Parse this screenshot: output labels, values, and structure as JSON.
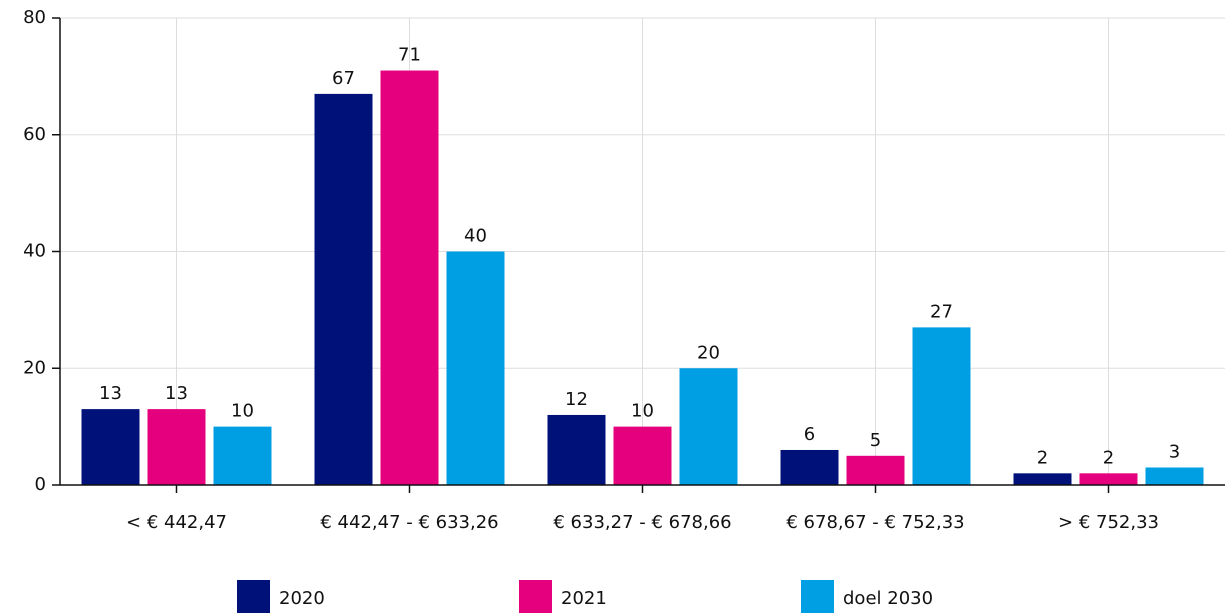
{
  "chart_data": {
    "type": "bar",
    "categories": [
      "< € 442,47",
      "€ 442,47 - € 633,26",
      "€ 633,27 - € 678,66",
      "€ 678,67 - € 752,33",
      "> € 752,33"
    ],
    "series": [
      {
        "name": "2020",
        "color": "#00127a",
        "values": [
          13,
          67,
          12,
          6,
          2
        ]
      },
      {
        "name": "2021",
        "color": "#e5007e",
        "values": [
          13,
          71,
          10,
          5,
          2
        ]
      },
      {
        "name": "doel 2030",
        "color": "#009fe3",
        "values": [
          10,
          40,
          20,
          27,
          3
        ]
      }
    ],
    "ylim": [
      0,
      80
    ],
    "yticks": [
      0,
      20,
      40,
      60,
      80
    ],
    "grid": true,
    "legend": "bottom"
  }
}
